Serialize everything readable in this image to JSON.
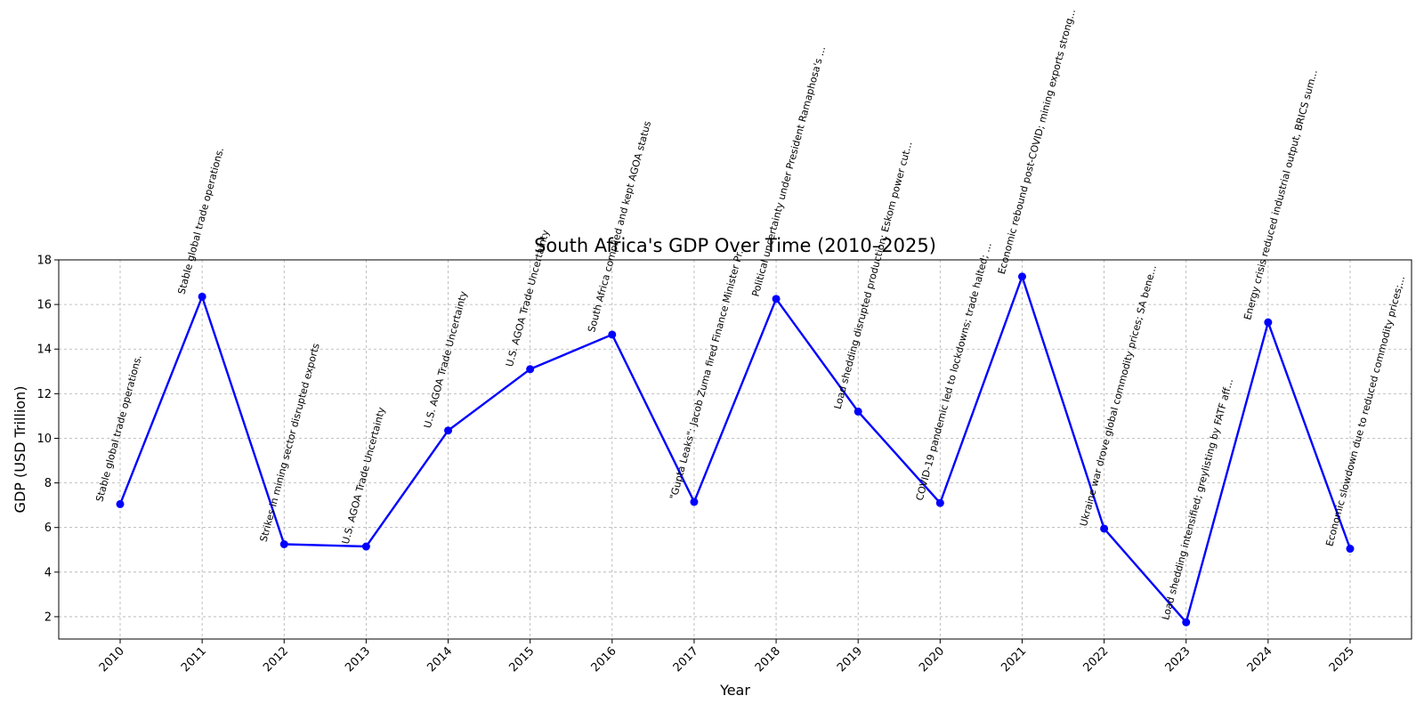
{
  "chart_data": {
    "type": "line",
    "title": "South Africa's GDP Over Time (2010–2025)",
    "xlabel": "Year",
    "ylabel": "GDP (USD Trillion)",
    "ylim": [
      1,
      18
    ],
    "yticks": [
      2,
      4,
      6,
      8,
      10,
      12,
      14,
      16,
      18
    ],
    "grid": true,
    "line_color": "#0000ff",
    "x": [
      "2010",
      "2011",
      "2012",
      "2013",
      "2014",
      "2015",
      "2016",
      "2017",
      "2018",
      "2019",
      "2020",
      "2021",
      "2022",
      "2023",
      "2024",
      "2025"
    ],
    "series": [
      {
        "values": [
          7.05,
          16.35,
          5.25,
          5.15,
          10.35,
          13.1,
          14.65,
          7.15,
          16.25,
          11.2,
          7.1,
          17.25,
          5.95,
          1.75,
          15.2,
          5.05
        ]
      }
    ],
    "annotations": [
      "Stable global trade operations.",
      "Stable global trade operations.",
      "Strikes in mining sector disrupted exports",
      "U.S. AGOA Trade Uncertainty",
      "U.S. AGOA Trade Uncertainty",
      "U.S. AGOA Trade Uncertainty",
      "South Africa complied and kept AGOA status",
      "\"Gupta Leaks\": Jacob Zuma fired Finance Minister Pr...",
      "Political uncertainty under President Ramaphosa's ...",
      "Load shedding disrupted production; Eskom power cut...",
      "COVID-19 pandemic led to lockdowns; trade halted; ...",
      "Economic rebound post-COVID; mining exports strong...",
      "Ukraine war drove global commodity prices; SA bene...",
      "Load shedding intensified; greylisting by FATF aff...",
      "Energy crisis reduced industrial output, BRICS sum...",
      "Economic slowdown due to reduced commodity prices;..."
    ]
  }
}
